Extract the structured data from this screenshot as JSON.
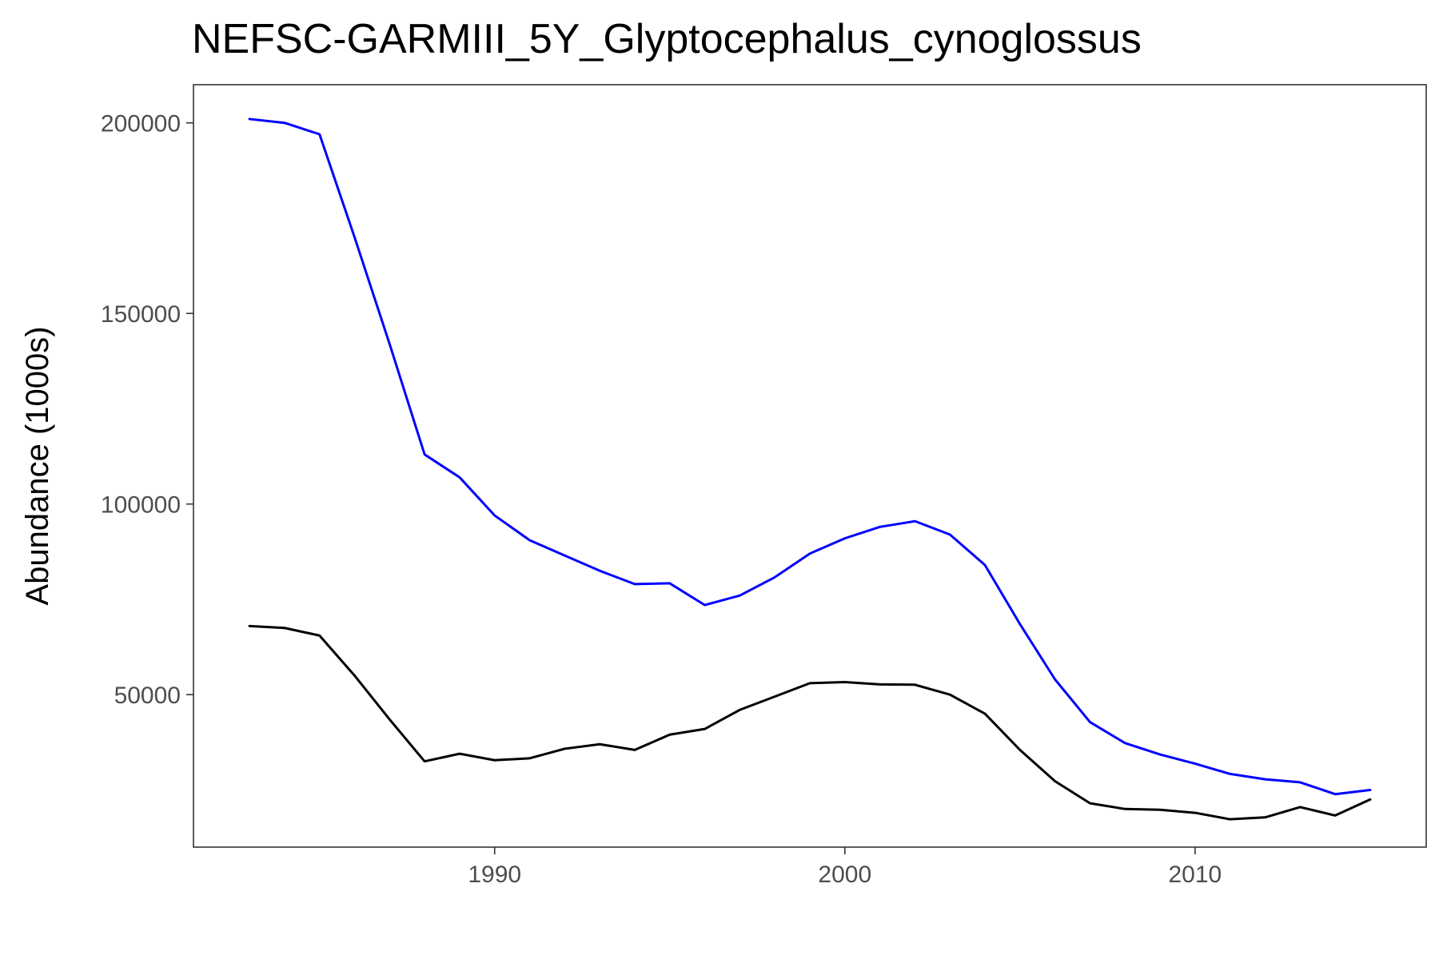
{
  "chart_data": {
    "type": "line",
    "title": "NEFSC-GARMIII_5Y_Glyptocephalus_cynoglossus",
    "xlabel": "",
    "ylabel": "Abundance (1000s)",
    "xlim": [
      1981.4,
      2016.6
    ],
    "ylim": [
      10000,
      210000
    ],
    "x_ticks": [
      1990,
      2000,
      2010
    ],
    "y_ticks": [
      50000,
      100000,
      150000,
      200000
    ],
    "x_tick_labels": [
      "1990",
      "2000",
      "2010"
    ],
    "y_tick_labels": [
      "50000",
      "100000",
      "150000",
      "200000"
    ],
    "grid": false,
    "legend": "none",
    "x": [
      1983,
      1984,
      1985,
      1986,
      1987,
      1988,
      1989,
      1990,
      1991,
      1992,
      1993,
      1994,
      1995,
      1996,
      1997,
      1998,
      1999,
      2000,
      2001,
      2002,
      2003,
      2004,
      2005,
      2006,
      2007,
      2008,
      2009,
      2010,
      2011,
      2012,
      2013,
      2014,
      2015
    ],
    "series": [
      {
        "color": "#0000ff",
        "values": [
          201000,
          200000,
          197000,
          170000,
          142000,
          113000,
          107000,
          97000,
          90500,
          86500,
          82500,
          79000,
          79200,
          73500,
          76000,
          80800,
          87000,
          91000,
          94000,
          95500,
          92000,
          84000,
          68500,
          54000,
          42800,
          37300,
          34300,
          31900,
          29200,
          27800,
          27000,
          23900,
          25000
        ]
      },
      {
        "color": "#000000",
        "values": [
          68000,
          67500,
          65500,
          55000,
          43500,
          32500,
          34500,
          32800,
          33300,
          35800,
          37000,
          35500,
          39500,
          41000,
          46000,
          49500,
          53000,
          53300,
          52700,
          52600,
          50000,
          45000,
          35500,
          27300,
          21500,
          20000,
          19800,
          19000,
          17300,
          17800,
          20500,
          18300,
          22500
        ]
      }
    ]
  }
}
